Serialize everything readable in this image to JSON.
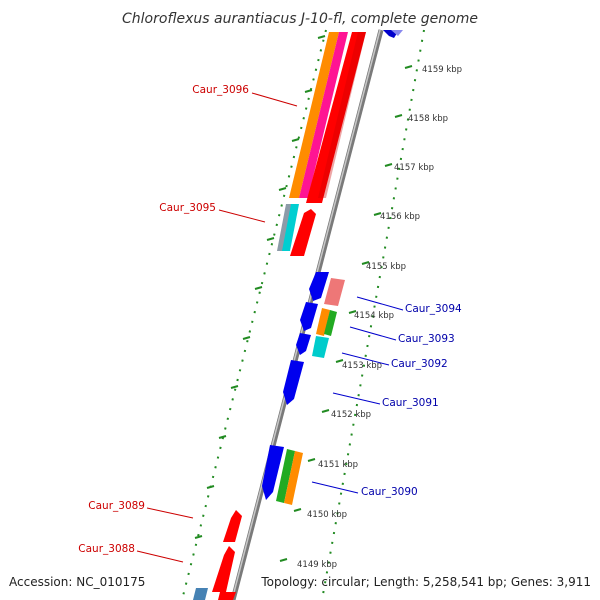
{
  "title": "Chloroflexus aurantiacus J-10-fl, complete genome",
  "footer": {
    "accession": "Accession: NC_010175",
    "topology": "Topology: circular; Length: 5,258,541 bp; Genes: 3,911"
  },
  "colors": {
    "backbone": "#9a9a9a",
    "tick": "#228b22",
    "forward_label": "#cc0000",
    "reverse_label": "#0000aa"
  },
  "ticks": [
    {
      "label": "4159 kbp"
    },
    {
      "label": "4158 kbp"
    },
    {
      "label": "4157 kbp"
    },
    {
      "label": "4156 kbp"
    },
    {
      "label": "4155 kbp"
    },
    {
      "label": "4154 kbp"
    },
    {
      "label": "4153 kbp"
    },
    {
      "label": "4152 kbp"
    },
    {
      "label": "4151 kbp"
    },
    {
      "label": "4150 kbp"
    },
    {
      "label": "4149 kbp"
    }
  ],
  "gene_labels": {
    "caur_3096": "Caur_3096",
    "caur_3095": "Caur_3095",
    "caur_3094": "Caur_3094",
    "caur_3093": "Caur_3093",
    "caur_3092": "Caur_3092",
    "caur_3091": "Caur_3091",
    "caur_3090": "Caur_3090",
    "caur_3089": "Caur_3089",
    "caur_3088": "Caur_3088"
  }
}
